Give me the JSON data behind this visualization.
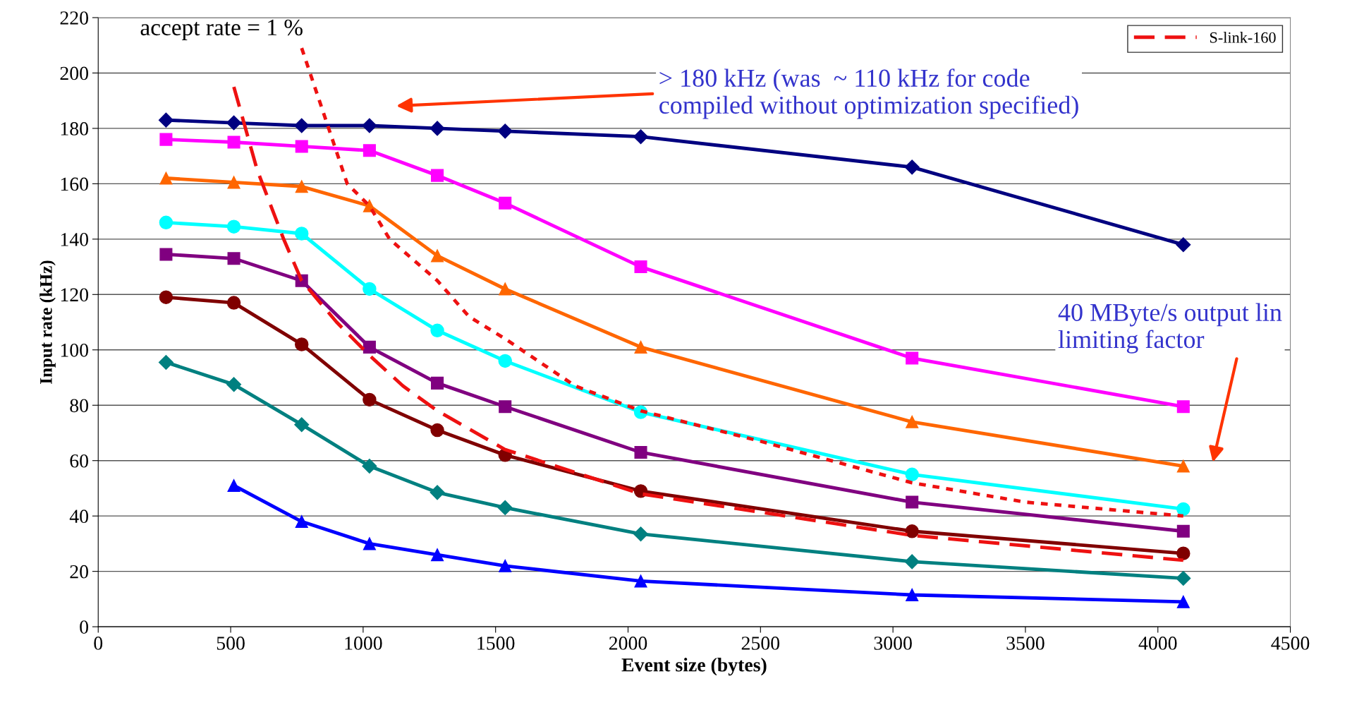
{
  "chart_data": {
    "type": "line",
    "xlabel": "Event size (bytes)",
    "ylabel": "Input rate (kHz)",
    "annotations": [
      "accept rate = 1 %",
      "> 180 kHz (was  ~ 110 kHz for code\ncompiled without optimization specified)",
      "40 MByte/s output lin\nlimiting factor"
    ],
    "xlim": [
      0,
      4500
    ],
    "xticks": [
      0,
      500,
      1000,
      1500,
      2000,
      2500,
      3000,
      3500,
      4000,
      4500
    ],
    "ylim": [
      0,
      220
    ],
    "yticks": [
      0,
      20,
      40,
      60,
      80,
      100,
      120,
      140,
      160,
      180,
      200,
      220
    ],
    "grid": "y",
    "legend": "top right",
    "x": [
      256,
      512,
      768,
      1024,
      1280,
      1536,
      2048,
      3072,
      4096
    ],
    "series": [
      {
        "color": "#000080",
        "marker": "diamond",
        "values": [
          183,
          182,
          181,
          181,
          180,
          179,
          177,
          166,
          138
        ]
      },
      {
        "color": "#ff00ff",
        "marker": "square",
        "values": [
          176,
          175,
          173.5,
          172,
          163,
          153,
          130,
          97,
          79.5
        ]
      },
      {
        "color": "#ff6600",
        "marker": "triangle",
        "values": [
          162,
          160.5,
          159,
          152,
          134,
          122,
          101,
          74,
          58
        ]
      },
      {
        "color": "#00ffff",
        "marker": "circle",
        "values": [
          146,
          144.5,
          142,
          122,
          107,
          96,
          77.5,
          55,
          42.5
        ]
      },
      {
        "color": "#800080",
        "marker": "square",
        "values": [
          134.5,
          133,
          125,
          101,
          88,
          79.5,
          63,
          45,
          34.5
        ]
      },
      {
        "color": "#800000",
        "marker": "circle",
        "values": [
          119,
          117,
          102,
          82,
          71,
          62,
          49,
          34.5,
          26.5
        ]
      },
      {
        "color": "#008080",
        "marker": "diamond",
        "values": [
          95.5,
          87.5,
          73,
          58,
          48.5,
          43,
          33.5,
          23.5,
          17.5
        ]
      },
      {
        "color": "#0000ff",
        "marker": "triangle",
        "values": [
          null,
          51,
          38,
          30,
          26,
          22,
          16.5,
          11.5,
          9
        ]
      },
      {
        "color": "#ee1111",
        "marker": "none",
        "line_style": "dotted",
        "x": [
          768,
          870,
          940,
          1024,
          1100,
          1280,
          1400,
          1536,
          1800,
          2048,
          2500,
          3072,
          3500,
          4096
        ],
        "values": [
          209,
          180,
          160,
          152,
          140,
          125,
          112,
          104,
          87,
          78,
          67,
          52,
          45,
          40
        ]
      },
      {
        "name": "S-link-160",
        "color": "#ee1111",
        "marker": "none",
        "line_style": "dashed",
        "x": [
          512,
          600,
          700,
          768,
          900,
          1024,
          1150,
          1280,
          1536,
          2048,
          3072,
          4096
        ],
        "values": [
          195,
          165,
          140,
          125,
          110,
          98,
          87,
          78,
          64,
          48,
          33,
          24
        ]
      }
    ]
  }
}
